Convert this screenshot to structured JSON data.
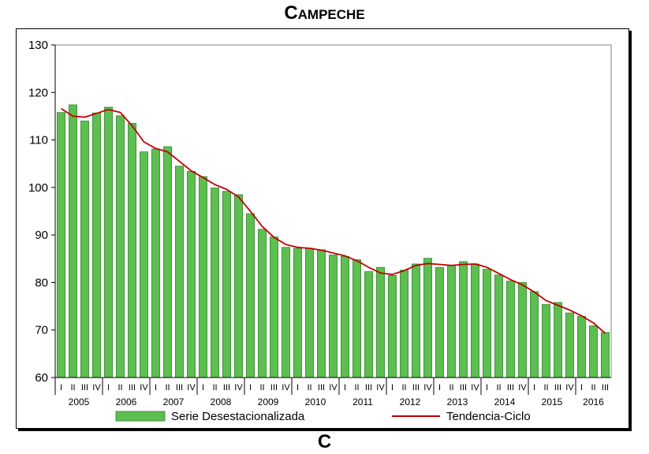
{
  "title": "Campeche",
  "bottom_title": "C",
  "chart_data": {
    "type": "bar",
    "ylim": [
      60,
      130
    ],
    "yticks": [
      60,
      70,
      80,
      90,
      100,
      110,
      120,
      130
    ],
    "years": [
      "2005",
      "2006",
      "2007",
      "2008",
      "2009",
      "2010",
      "2011",
      "2012",
      "2013",
      "2014",
      "2015",
      "2016"
    ],
    "quarter_labels": [
      "I",
      "II",
      "III",
      "IV"
    ],
    "grid": false,
    "legend_position": "bottom",
    "series": [
      {
        "name": "Serie Desestacionalizada",
        "type": "bar",
        "color": "#5cbf4f",
        "values": [
          115.8,
          117.4,
          114.0,
          115.7,
          116.9,
          115.1,
          113.5,
          107.5,
          108.1,
          108.6,
          104.5,
          103.4,
          102.3,
          99.9,
          99.2,
          98.5,
          94.5,
          91.2,
          89.6,
          87.4,
          87.2,
          87.2,
          86.9,
          85.8,
          85.5,
          84.8,
          82.3,
          83.2,
          81.5,
          82.6,
          83.9,
          85.1,
          83.2,
          83.6,
          84.4,
          83.9,
          82.8,
          81.6,
          80.3,
          80.0,
          78.1,
          75.4,
          75.8,
          73.6,
          72.9,
          70.9,
          69.5
        ]
      },
      {
        "name": "Tendencia-Ciclo",
        "type": "line",
        "color": "#c00000",
        "values": [
          116.6,
          115.0,
          114.8,
          115.6,
          116.4,
          115.8,
          113.0,
          109.6,
          108.2,
          107.5,
          105.5,
          103.5,
          102.1,
          100.6,
          99.6,
          98.0,
          95.0,
          91.8,
          89.5,
          88.0,
          87.4,
          87.2,
          86.8,
          86.2,
          85.6,
          84.6,
          83.2,
          82.0,
          81.7,
          82.5,
          83.6,
          84.0,
          83.8,
          83.6,
          83.8,
          83.9,
          83.2,
          81.9,
          80.6,
          79.5,
          78.0,
          76.2,
          75.2,
          74.2,
          73.0,
          71.5,
          69.3
        ]
      }
    ]
  }
}
